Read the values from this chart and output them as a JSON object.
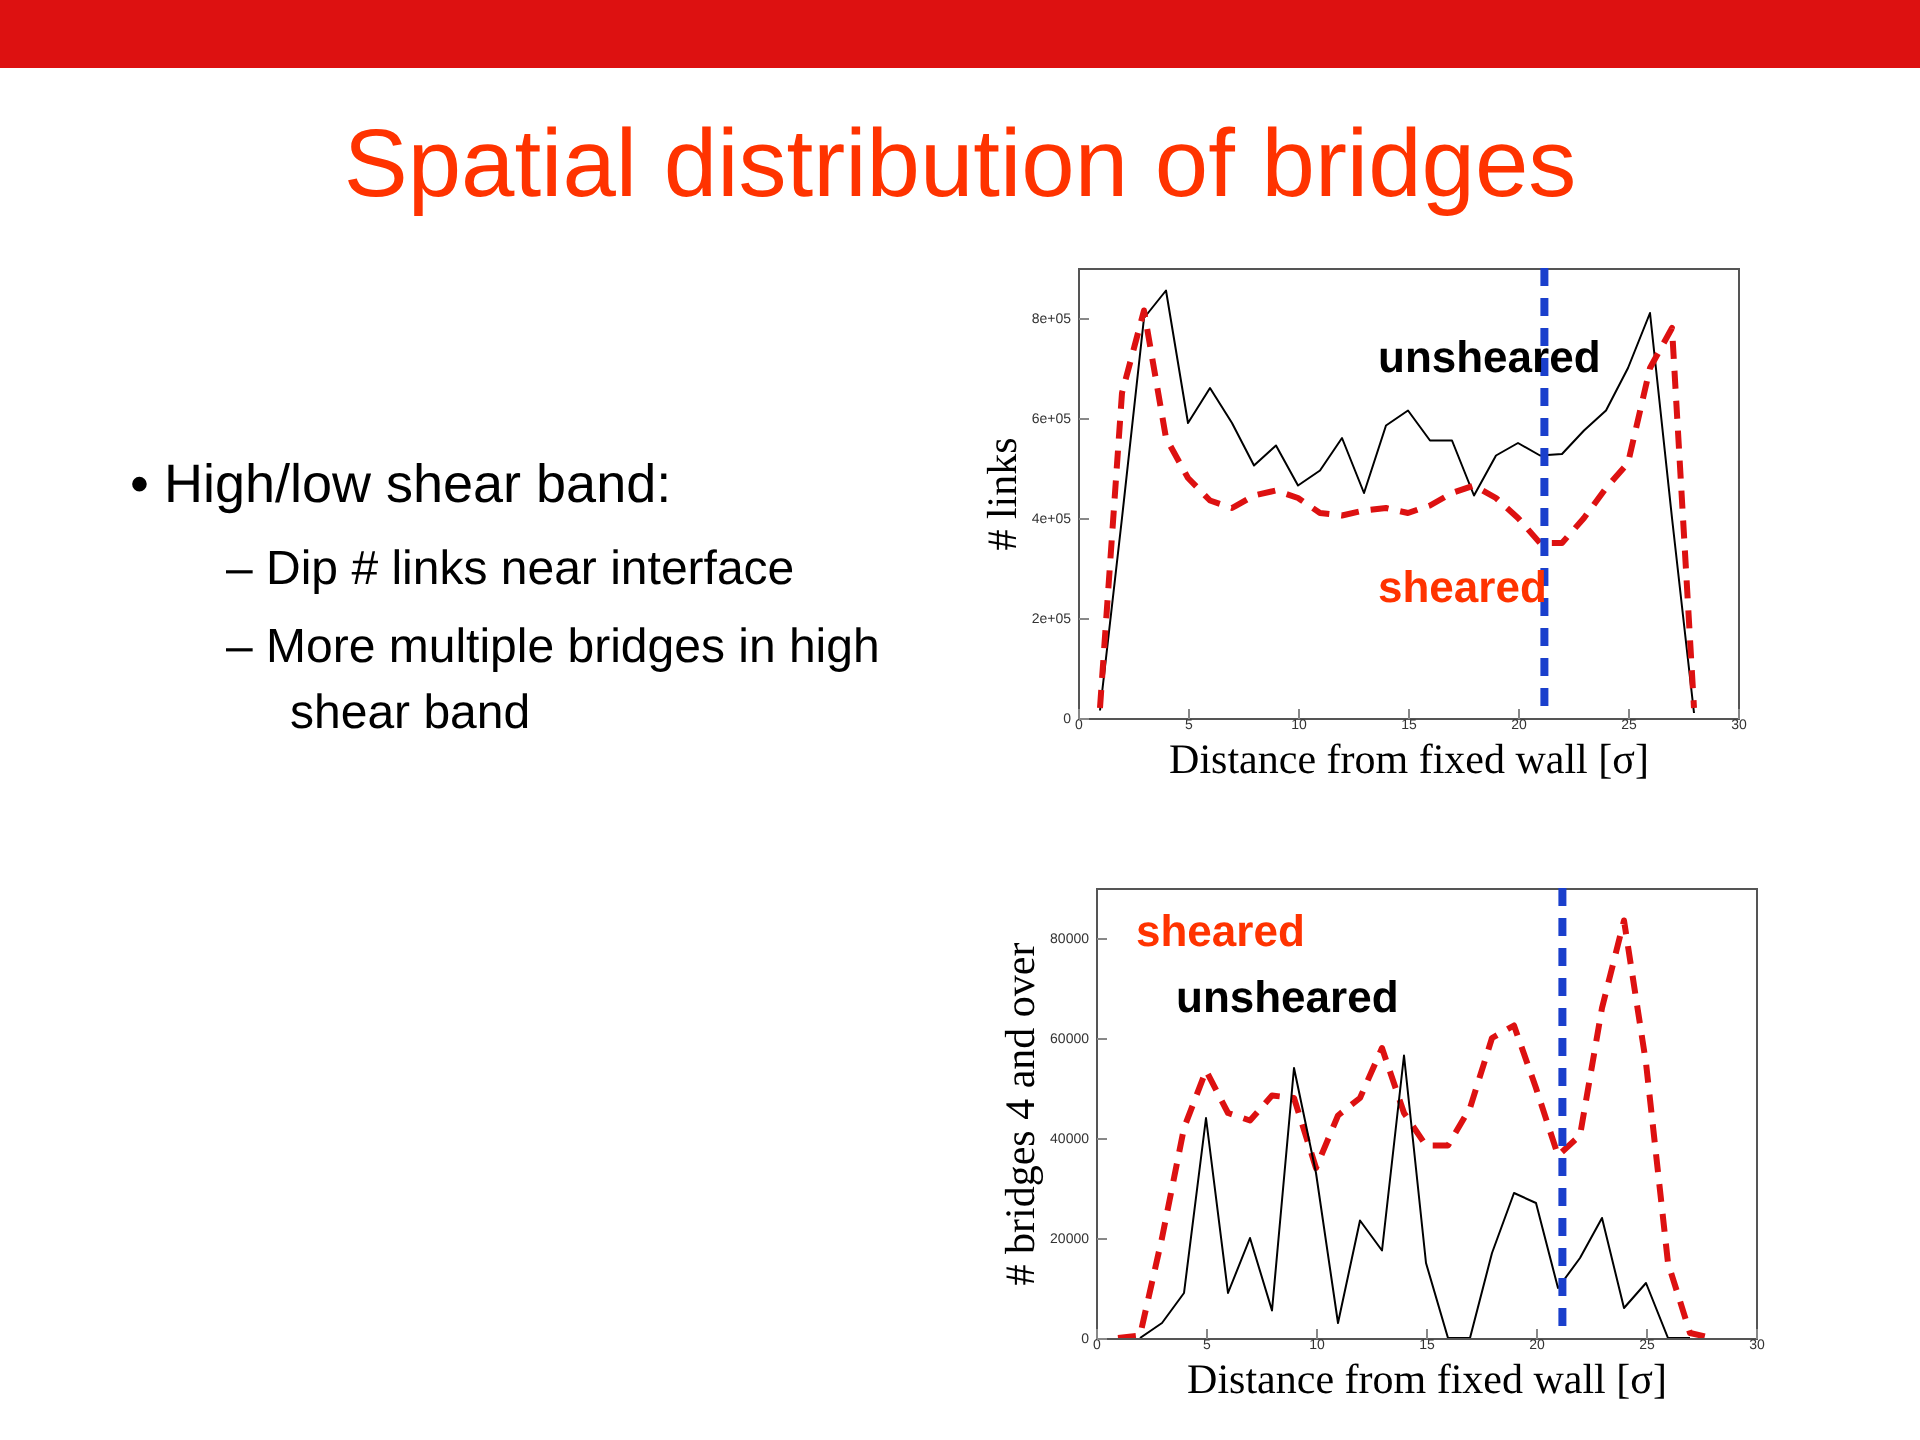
{
  "chart_data": [
    {
      "type": "other",
      "title": "Spatial distribution of bridges",
      "annotations": [
        "• High/low shear band:",
        "– Dip # links near interface",
        "– More multiple bridges in high shear band"
      ]
    },
    {
      "type": "line",
      "xlabel": "Distance from fixed wall [σ]",
      "ylabel": "# links",
      "x": [
        1,
        2,
        3,
        4,
        5,
        6,
        7,
        8,
        9,
        10,
        11,
        12,
        13,
        14,
        15,
        16,
        17,
        18,
        19,
        20,
        21,
        22,
        23,
        24,
        25,
        26,
        27,
        28
      ],
      "xlim": [
        0,
        30
      ],
      "xticks": [
        0,
        5,
        10,
        15,
        20,
        25,
        30
      ],
      "ylim": [
        0,
        900000
      ],
      "yticks": [
        0,
        {
          "value": 200000,
          "label": "2e+05"
        },
        {
          "value": 400000,
          "label": "4e+05"
        },
        {
          "value": 600000,
          "label": "6e+05"
        },
        {
          "value": 800000,
          "label": "8e+05"
        }
      ],
      "grid": false,
      "series": [
        {
          "name": "unsheared",
          "color": "#000000",
          "line_style": "solid",
          "values": [
            15000,
            400000,
            800000,
            855000,
            590000,
            660000,
            590000,
            505000,
            545000,
            465000,
            495000,
            560000,
            450000,
            585000,
            615000,
            555000,
            555000,
            445000,
            525000,
            550000,
            525000,
            528000,
            575000,
            615000,
            700000,
            810000,
            400000,
            10000
          ]
        },
        {
          "name": "sheared",
          "color": "#dd1111",
          "line_style": "dashed",
          "values": [
            20000,
            650000,
            815000,
            560000,
            480000,
            435000,
            420000,
            445000,
            455000,
            440000,
            410000,
            405000,
            415000,
            420000,
            410000,
            425000,
            450000,
            465000,
            440000,
            400000,
            350000,
            350000,
            400000,
            460000,
            510000,
            700000,
            780000,
            20000
          ]
        }
      ],
      "ref_lines": [
        {
          "axis": "x",
          "value": 21.2,
          "label": null,
          "color": "#1a3fcc",
          "line_style": "dashed"
        }
      ]
    },
    {
      "type": "line",
      "xlabel": "Distance from fixed wall [σ]",
      "ylabel": "# bridges 4 and over",
      "x": [
        1,
        2,
        3,
        4,
        5,
        6,
        7,
        8,
        9,
        10,
        11,
        12,
        13,
        14,
        15,
        16,
        17,
        18,
        19,
        20,
        21,
        22,
        23,
        24,
        25,
        26,
        27,
        28
      ],
      "xlim": [
        0,
        30
      ],
      "xticks": [
        0,
        5,
        10,
        15,
        20,
        25,
        30
      ],
      "ylim": [
        0,
        90000
      ],
      "yticks": [
        0,
        20000,
        40000,
        60000,
        80000
      ],
      "grid": false,
      "series": [
        {
          "name": "sheared",
          "color": "#dd1111",
          "line_style": "dashed",
          "values": [
            0,
            500,
            20000,
            42000,
            53500,
            45000,
            43500,
            48500,
            48000,
            34000,
            44500,
            48000,
            58000,
            45000,
            38500,
            38500,
            46000,
            60000,
            62500,
            50000,
            36500,
            40500,
            66000,
            83500,
            55000,
            15000,
            1000,
            0
          ]
        },
        {
          "name": "unsheared",
          "color": "#000000",
          "line_style": "solid",
          "values": [
            null,
            0,
            3000,
            9000,
            44000,
            9000,
            20000,
            5500,
            54000,
            33000,
            3000,
            23500,
            17500,
            56500,
            15000,
            0,
            0,
            17000,
            29000,
            27000,
            10000,
            16000,
            24000,
            6000,
            11000,
            0,
            0,
            null
          ]
        }
      ],
      "ref_lines": [
        {
          "axis": "x",
          "value": 21.2,
          "label": null,
          "color": "#1a3fcc",
          "line_style": "dashed"
        }
      ]
    }
  ]
}
